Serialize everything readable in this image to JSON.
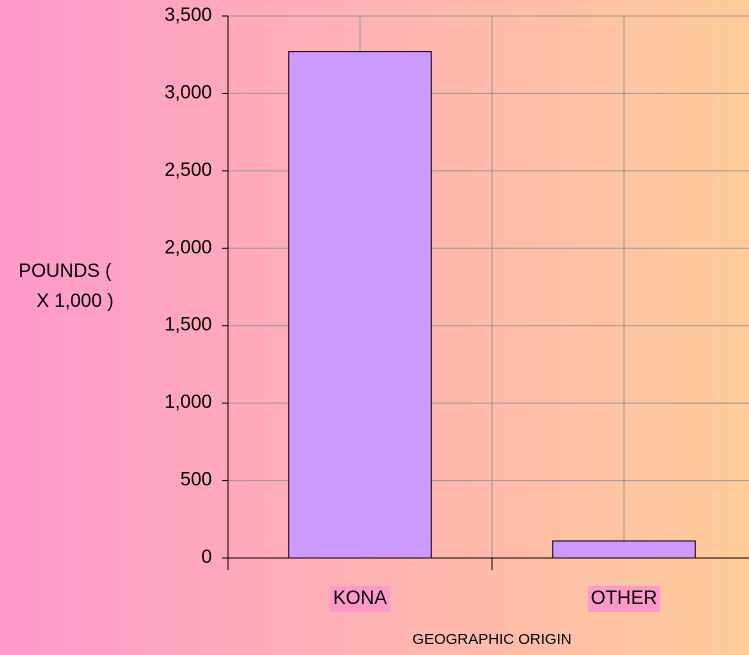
{
  "chart_data": {
    "type": "bar",
    "x_label": "GEOGRAPHIC ORIGIN",
    "y_label": [
      "POUNDS (",
      "X 1,000 )"
    ],
    "categories": [
      "KONA",
      "OTHER"
    ],
    "values": [
      3270,
      110
    ],
    "color": "#cc99ff",
    "ylim": [
      0,
      3500
    ],
    "yticks": [
      0,
      500,
      {
        "value": 1000,
        "label": "1,000"
      },
      {
        "value": 1500,
        "label": "1,500"
      },
      {
        "value": 2000,
        "label": "2,000"
      },
      {
        "value": 2500,
        "label": "2,500"
      },
      {
        "value": 3000,
        "label": "3,000"
      },
      {
        "value": 3500,
        "label": "3,500"
      }
    ],
    "grid": true
  }
}
